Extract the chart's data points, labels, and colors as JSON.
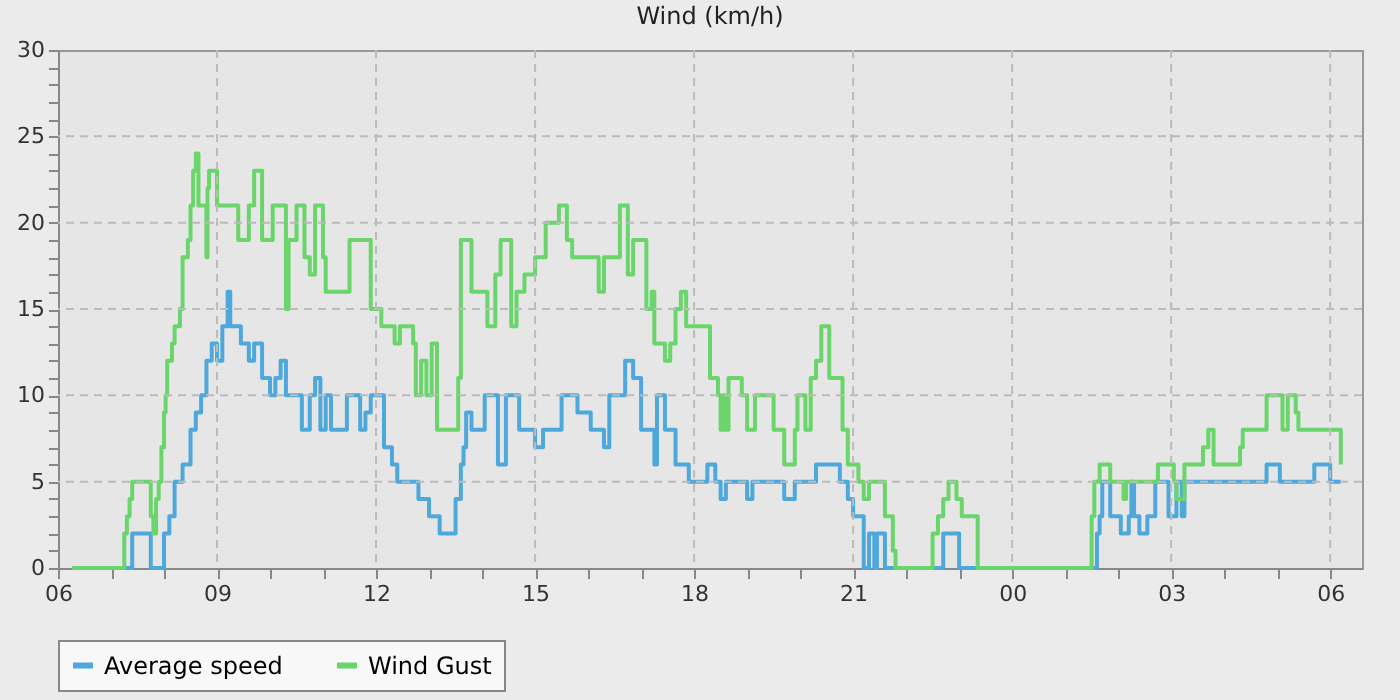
{
  "chart_data": {
    "type": "step",
    "title": "Wind (km/h)",
    "xlim": [
      6,
      30.6
    ],
    "xticks": [
      {
        "value": 6,
        "label": "06"
      },
      {
        "value": 7,
        "label": null
      },
      {
        "value": 8,
        "label": null
      },
      {
        "value": 9,
        "label": "09"
      },
      {
        "value": 10,
        "label": null
      },
      {
        "value": 11,
        "label": null
      },
      {
        "value": 12,
        "label": "12"
      },
      {
        "value": 13,
        "label": null
      },
      {
        "value": 14,
        "label": null
      },
      {
        "value": 15,
        "label": "15"
      },
      {
        "value": 16,
        "label": null
      },
      {
        "value": 17,
        "label": null
      },
      {
        "value": 18,
        "label": "18"
      },
      {
        "value": 19,
        "label": null
      },
      {
        "value": 20,
        "label": null
      },
      {
        "value": 21,
        "label": "21"
      },
      {
        "value": 22,
        "label": null
      },
      {
        "value": 23,
        "label": null
      },
      {
        "value": 24,
        "label": "00"
      },
      {
        "value": 25,
        "label": null
      },
      {
        "value": 26,
        "label": null
      },
      {
        "value": 27,
        "label": "03"
      },
      {
        "value": 28,
        "label": null
      },
      {
        "value": 29,
        "label": null
      },
      {
        "value": 30,
        "label": "06"
      }
    ],
    "ylim": [
      0,
      30
    ],
    "yticks": [
      0,
      {
        "value": 1,
        "label": null
      },
      {
        "value": 2,
        "label": null
      },
      {
        "value": 3,
        "label": null
      },
      {
        "value": 4,
        "label": null
      },
      5,
      {
        "value": 6,
        "label": null
      },
      {
        "value": 7,
        "label": null
      },
      {
        "value": 8,
        "label": null
      },
      {
        "value": 9,
        "label": null
      },
      10,
      {
        "value": 11,
        "label": null
      },
      {
        "value": 12,
        "label": null
      },
      {
        "value": 13,
        "label": null
      },
      {
        "value": 14,
        "label": null
      },
      15,
      {
        "value": 16,
        "label": null
      },
      {
        "value": 17,
        "label": null
      },
      {
        "value": 18,
        "label": null
      },
      {
        "value": 19,
        "label": null
      },
      20,
      {
        "value": 21,
        "label": null
      },
      {
        "value": 22,
        "label": null
      },
      {
        "value": 23,
        "label": null
      },
      {
        "value": 24,
        "label": null
      },
      25,
      {
        "value": 26,
        "label": null
      },
      {
        "value": 27,
        "label": null
      },
      {
        "value": 28,
        "label": null
      },
      {
        "value": 29,
        "label": null
      },
      30
    ],
    "grid": true,
    "legend": "bottom",
    "line_style": "solid",
    "series": [
      {
        "name": "Average speed",
        "color": "#4ea8dc",
        "x": [
          6.27,
          7.4,
          7.75,
          8.0,
          8.1,
          8.2,
          8.35,
          8.5,
          8.6,
          8.7,
          8.8,
          8.9,
          9.0,
          9.1,
          9.2,
          9.25,
          9.45,
          9.6,
          9.7,
          9.85,
          10.0,
          10.1,
          10.2,
          10.3,
          10.6,
          10.75,
          10.85,
          10.95,
          11.05,
          11.15,
          11.45,
          11.7,
          11.8,
          11.9,
          12.15,
          12.3,
          12.4,
          12.8,
          13.0,
          13.2,
          13.5,
          13.6,
          13.65,
          13.7,
          13.8,
          14.05,
          14.3,
          14.45,
          14.7,
          15.0,
          15.15,
          15.5,
          15.8,
          16.05,
          16.3,
          16.4,
          16.7,
          16.85,
          17.0,
          17.25,
          17.3,
          17.45,
          17.65,
          17.9,
          18.25,
          18.4,
          18.5,
          18.6,
          19.0,
          19.1,
          19.7,
          19.9,
          20.3,
          20.75,
          20.9,
          21.0,
          21.2,
          21.3,
          21.4,
          21.45,
          21.6,
          22.7,
          23.0,
          25.6,
          25.65,
          25.7,
          25.85,
          26.05,
          26.2,
          26.25,
          26.3,
          26.4,
          26.55,
          26.7,
          26.95,
          27.1,
          27.2,
          27.25,
          28.8,
          29.05,
          29.7,
          30.0,
          30.2
        ],
        "values": [
          0,
          2,
          0,
          2,
          3,
          5,
          6,
          8,
          9,
          10,
          12,
          13,
          12,
          14,
          16,
          14,
          13,
          12,
          13,
          11,
          10,
          11,
          12,
          10,
          8,
          10,
          11,
          8,
          10,
          8,
          10,
          8,
          9,
          10,
          7,
          6,
          5,
          4,
          3,
          2,
          4,
          6,
          7,
          9,
          8,
          10,
          6,
          10,
          8,
          7,
          8,
          10,
          9,
          8,
          7,
          10,
          12,
          11,
          8,
          6,
          10,
          8,
          6,
          5,
          6,
          5,
          4,
          5,
          4,
          5,
          4,
          5,
          6,
          5,
          4,
          3,
          0,
          2,
          0,
          2,
          0,
          2,
          0,
          2,
          3,
          5,
          3,
          2,
          3,
          5,
          3,
          2,
          3,
          5,
          3,
          5,
          3,
          5,
          6,
          5,
          6,
          5,
          5
        ]
      },
      {
        "name": "Wind Gust",
        "color": "#6ad56a",
        "x": [
          6.27,
          7.25,
          7.3,
          7.35,
          7.4,
          7.75,
          7.8,
          7.85,
          7.9,
          7.95,
          8.0,
          8.03,
          8.06,
          8.15,
          8.2,
          8.3,
          8.35,
          8.45,
          8.5,
          8.55,
          8.6,
          8.65,
          8.8,
          8.82,
          8.85,
          9.0,
          9.15,
          9.4,
          9.6,
          9.7,
          9.85,
          10.05,
          10.3,
          10.35,
          10.5,
          10.65,
          10.75,
          10.85,
          11.0,
          11.05,
          11.5,
          11.9,
          12.1,
          12.35,
          12.45,
          12.7,
          12.75,
          12.85,
          12.95,
          13.05,
          13.15,
          13.55,
          13.6,
          13.8,
          14.1,
          14.25,
          14.35,
          14.55,
          14.65,
          14.8,
          15.0,
          15.2,
          15.45,
          15.6,
          15.7,
          15.75,
          16.2,
          16.3,
          16.6,
          16.75,
          16.85,
          17.1,
          17.2,
          17.25,
          17.45,
          17.55,
          17.65,
          17.75,
          17.85,
          18.3,
          18.45,
          18.5,
          18.55,
          18.6,
          18.65,
          18.9,
          19.0,
          19.15,
          19.5,
          19.7,
          19.9,
          19.95,
          20.1,
          20.2,
          20.3,
          20.4,
          20.55,
          20.8,
          20.9,
          21.1,
          21.2,
          21.3,
          21.6,
          21.75,
          21.8,
          22.5,
          22.6,
          22.7,
          22.8,
          22.95,
          23.05,
          23.35,
          25.5,
          25.55,
          25.65,
          25.85,
          26.1,
          26.15,
          26.75,
          27.05,
          27.1,
          27.25,
          27.6,
          27.7,
          27.8,
          28.3,
          28.35,
          28.8,
          29.1,
          29.2,
          29.35,
          29.4,
          30.2
        ],
        "values": [
          0,
          2,
          3,
          4,
          5,
          3,
          2,
          4,
          5,
          7,
          9,
          10,
          12,
          13,
          14,
          15,
          18,
          19,
          21,
          23,
          24,
          21,
          18,
          22,
          23,
          21,
          21,
          19,
          21,
          23,
          19,
          21,
          15,
          19,
          21,
          18,
          17,
          21,
          18,
          16,
          19,
          15,
          14,
          13,
          14,
          13,
          10,
          12,
          10,
          13,
          8,
          11,
          19,
          16,
          14,
          17,
          19,
          14,
          16,
          17,
          18,
          20,
          21,
          19,
          18,
          18,
          16,
          18,
          21,
          17,
          19,
          15,
          16,
          13,
          12,
          13,
          15,
          16,
          14,
          11,
          10,
          8,
          10,
          8,
          11,
          10,
          8,
          10,
          8,
          6,
          8,
          10,
          8,
          11,
          12,
          14,
          11,
          8,
          6,
          5,
          4,
          5,
          3,
          1,
          0,
          2,
          3,
          4,
          5,
          4,
          3,
          0,
          3,
          5,
          6,
          5,
          4,
          5,
          6,
          5,
          4,
          6,
          7,
          8,
          6,
          7,
          8,
          10,
          8,
          10,
          9,
          8,
          6
        ]
      }
    ]
  }
}
